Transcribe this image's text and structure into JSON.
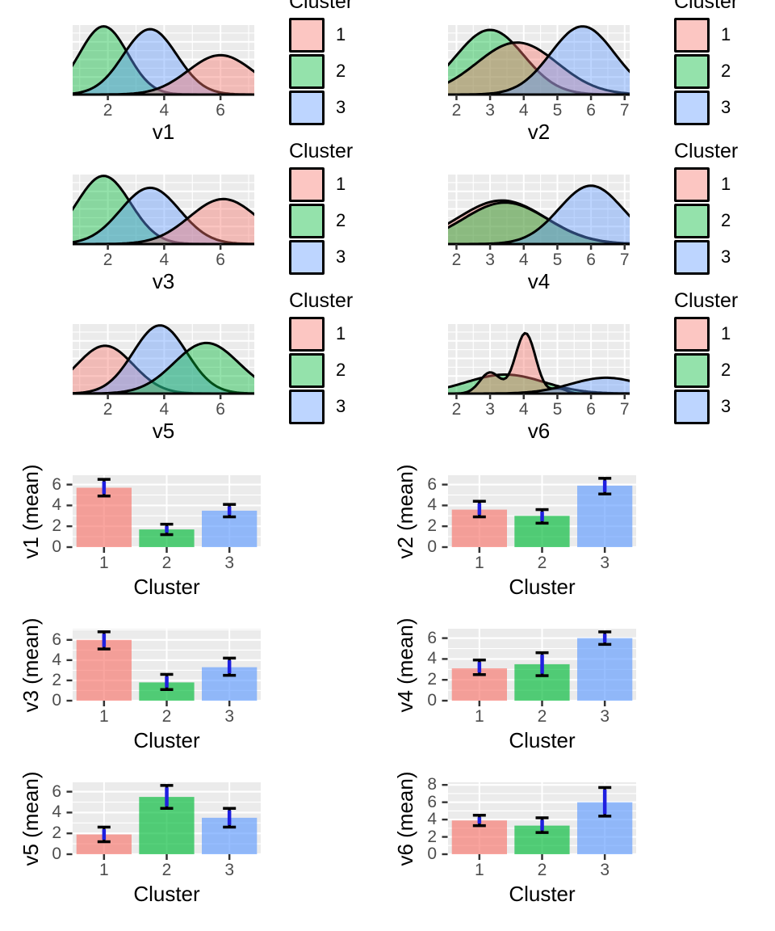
{
  "colors": {
    "cluster1": "#F8766D",
    "cluster2": "#00BA38",
    "cluster3": "#619CFF",
    "density_fill_alpha": 0.42,
    "bar_fill_alpha": 0.66,
    "curve_stroke": "#000000",
    "panel_bg": "#EBEBEB",
    "grid": "#FFFFFF",
    "tick_mark": "#333333",
    "tick_label": "#4D4D4D",
    "axis_title": "#000000",
    "errorbar_line": "#1F1FE0",
    "errorbar_cap": "#000000"
  },
  "legend": {
    "title": "Cluster",
    "entries": [
      {
        "label": "1",
        "cluster": "cluster1"
      },
      {
        "label": "2",
        "cluster": "cluster2"
      },
      {
        "label": "3",
        "cluster": "cluster3"
      }
    ]
  },
  "chart_data": [
    {
      "type": "density",
      "id": "v1",
      "xlabel": "v1",
      "row": 0,
      "col": 0,
      "x_domain": [
        0.75,
        7.2
      ],
      "x_ticks": [
        2,
        4,
        6
      ],
      "x_minor": [
        1,
        3,
        5,
        7
      ],
      "series": [
        {
          "cluster": "cluster2",
          "components": [
            {
              "mean": 1.85,
              "sd": 0.85,
              "height": 0.97
            }
          ]
        },
        {
          "cluster": "cluster3",
          "components": [
            {
              "mean": 3.5,
              "sd": 0.95,
              "height": 0.93
            }
          ]
        },
        {
          "cluster": "cluster1",
          "components": [
            {
              "mean": 6.0,
              "sd": 1.15,
              "height": 0.56
            }
          ]
        }
      ]
    },
    {
      "type": "density",
      "id": "v2",
      "xlabel": "v2",
      "row": 0,
      "col": 1,
      "x_domain": [
        1.75,
        7.15
      ],
      "x_ticks": [
        2,
        3,
        4,
        5,
        6,
        7
      ],
      "x_minor": [
        2.5,
        3.5,
        4.5,
        5.5,
        6.5
      ],
      "series": [
        {
          "cluster": "cluster2",
          "components": [
            {
              "mean": 3.0,
              "sd": 1.0,
              "height": 0.92
            }
          ]
        },
        {
          "cluster": "cluster1",
          "components": [
            {
              "mean": 3.8,
              "sd": 1.2,
              "height": 0.74
            }
          ]
        },
        {
          "cluster": "cluster3",
          "components": [
            {
              "mean": 5.75,
              "sd": 0.95,
              "height": 0.97
            }
          ]
        }
      ]
    },
    {
      "type": "density",
      "id": "v3",
      "xlabel": "v3",
      "row": 1,
      "col": 0,
      "x_domain": [
        0.75,
        7.2
      ],
      "x_ticks": [
        2,
        4,
        6
      ],
      "x_minor": [
        1,
        3,
        5,
        7
      ],
      "series": [
        {
          "cluster": "cluster2",
          "components": [
            {
              "mean": 1.85,
              "sd": 0.95,
              "height": 0.97
            }
          ]
        },
        {
          "cluster": "cluster3",
          "components": [
            {
              "mean": 3.5,
              "sd": 1.05,
              "height": 0.8
            }
          ]
        },
        {
          "cluster": "cluster1",
          "components": [
            {
              "mean": 6.1,
              "sd": 1.2,
              "height": 0.64
            }
          ]
        }
      ]
    },
    {
      "type": "density",
      "id": "v4",
      "xlabel": "v4",
      "row": 1,
      "col": 1,
      "x_domain": [
        1.75,
        7.15
      ],
      "x_ticks": [
        2,
        3,
        4,
        5,
        6,
        7
      ],
      "x_minor": [
        2.5,
        3.5,
        4.5,
        5.5,
        6.5
      ],
      "series": [
        {
          "cluster": "cluster1",
          "components": [
            {
              "mean": 3.35,
              "sd": 1.3,
              "height": 0.62
            }
          ]
        },
        {
          "cluster": "cluster2",
          "components": [
            {
              "mean": 3.45,
              "sd": 1.25,
              "height": 0.59
            }
          ]
        },
        {
          "cluster": "cluster3",
          "components": [
            {
              "mean": 6.0,
              "sd": 0.95,
              "height": 0.83
            }
          ]
        }
      ]
    },
    {
      "type": "density",
      "id": "v5",
      "xlabel": "v5",
      "row": 2,
      "col": 0,
      "x_domain": [
        0.75,
        7.2
      ],
      "x_ticks": [
        2,
        4,
        6
      ],
      "x_minor": [
        1,
        3,
        5,
        7
      ],
      "series": [
        {
          "cluster": "cluster1",
          "components": [
            {
              "mean": 1.9,
              "sd": 1.0,
              "height": 0.68
            }
          ]
        },
        {
          "cluster": "cluster3",
          "components": [
            {
              "mean": 3.85,
              "sd": 0.95,
              "height": 0.97
            }
          ]
        },
        {
          "cluster": "cluster2",
          "components": [
            {
              "mean": 5.5,
              "sd": 1.15,
              "height": 0.72
            }
          ]
        }
      ]
    },
    {
      "type": "density",
      "id": "v6",
      "xlabel": "v6",
      "row": 2,
      "col": 1,
      "x_domain": [
        1.75,
        7.15
      ],
      "x_ticks": [
        2,
        3,
        4,
        5,
        6,
        7
      ],
      "x_minor": [
        2.5,
        3.5,
        4.5,
        5.5,
        6.5
      ],
      "series": [
        {
          "cluster": "cluster2",
          "components": [
            {
              "mean": 3.45,
              "sd": 1.15,
              "height": 0.27
            }
          ]
        },
        {
          "cluster": "cluster1",
          "components": [
            {
              "mean": 3.0,
              "sd": 0.3,
              "height": 0.3
            },
            {
              "mean": 4.05,
              "sd": 0.3,
              "height": 0.86
            },
            {
              "mean": 5.05,
              "sd": 0.22,
              "height": 0.07
            }
          ]
        },
        {
          "cluster": "cluster3",
          "components": [
            {
              "mean": 6.45,
              "sd": 1.05,
              "height": 0.225
            }
          ]
        }
      ]
    },
    {
      "type": "bar",
      "id": "v1_mean",
      "ylabel": "v1 (mean)",
      "xlabel": "Cluster",
      "row": 0,
      "col": 0,
      "categories": [
        "1",
        "2",
        "3"
      ],
      "clusters": [
        "cluster1",
        "cluster2",
        "cluster3"
      ],
      "values": [
        5.7,
        1.7,
        3.5
      ],
      "error_low": [
        4.9,
        1.2,
        2.9
      ],
      "error_high": [
        6.5,
        2.2,
        4.1
      ],
      "y_ticks": [
        0,
        2,
        4,
        6
      ],
      "ylim": [
        0,
        6.9
      ]
    },
    {
      "type": "bar",
      "id": "v2_mean",
      "ylabel": "v2 (mean)",
      "xlabel": "Cluster",
      "row": 0,
      "col": 1,
      "categories": [
        "1",
        "2",
        "3"
      ],
      "clusters": [
        "cluster1",
        "cluster2",
        "cluster3"
      ],
      "values": [
        3.6,
        3.0,
        5.9
      ],
      "error_low": [
        2.9,
        2.3,
        5.1
      ],
      "error_high": [
        4.4,
        3.6,
        6.6
      ],
      "y_ticks": [
        0,
        2,
        4,
        6
      ],
      "ylim": [
        0,
        6.9
      ]
    },
    {
      "type": "bar",
      "id": "v3_mean",
      "ylabel": "v3 (mean)",
      "xlabel": "Cluster",
      "row": 1,
      "col": 0,
      "categories": [
        "1",
        "2",
        "3"
      ],
      "clusters": [
        "cluster1",
        "cluster2",
        "cluster3"
      ],
      "values": [
        6.0,
        1.8,
        3.3
      ],
      "error_low": [
        5.1,
        1.1,
        2.5
      ],
      "error_high": [
        6.8,
        2.6,
        4.2
      ],
      "y_ticks": [
        0,
        2,
        4,
        6
      ],
      "ylim": [
        0,
        7.1
      ]
    },
    {
      "type": "bar",
      "id": "v4_mean",
      "ylabel": "v4 (mean)",
      "xlabel": "Cluster",
      "row": 1,
      "col": 1,
      "categories": [
        "1",
        "2",
        "3"
      ],
      "clusters": [
        "cluster1",
        "cluster2",
        "cluster3"
      ],
      "values": [
        3.1,
        3.5,
        6.0
      ],
      "error_low": [
        2.5,
        2.4,
        5.4
      ],
      "error_high": [
        3.9,
        4.6,
        6.6
      ],
      "y_ticks": [
        0,
        2,
        4,
        6
      ],
      "ylim": [
        0,
        6.9
      ]
    },
    {
      "type": "bar",
      "id": "v5_mean",
      "ylabel": "v5 (mean)",
      "xlabel": "Cluster",
      "row": 2,
      "col": 0,
      "categories": [
        "1",
        "2",
        "3"
      ],
      "clusters": [
        "cluster1",
        "cluster2",
        "cluster3"
      ],
      "values": [
        1.9,
        5.5,
        3.5
      ],
      "error_low": [
        1.2,
        4.4,
        2.6
      ],
      "error_high": [
        2.6,
        6.6,
        4.4
      ],
      "y_ticks": [
        0,
        2,
        4,
        6
      ],
      "ylim": [
        0,
        6.9
      ]
    },
    {
      "type": "bar",
      "id": "v6_mean",
      "ylabel": "v6 (mean)",
      "xlabel": "Cluster",
      "row": 2,
      "col": 1,
      "categories": [
        "1",
        "2",
        "3"
      ],
      "clusters": [
        "cluster1",
        "cluster2",
        "cluster3"
      ],
      "values": [
        3.9,
        3.3,
        6.0
      ],
      "error_low": [
        3.3,
        2.5,
        4.4
      ],
      "error_high": [
        4.5,
        4.2,
        7.7
      ],
      "y_ticks": [
        0,
        2,
        4,
        6,
        8
      ],
      "ylim": [
        0,
        8.3
      ]
    }
  ]
}
